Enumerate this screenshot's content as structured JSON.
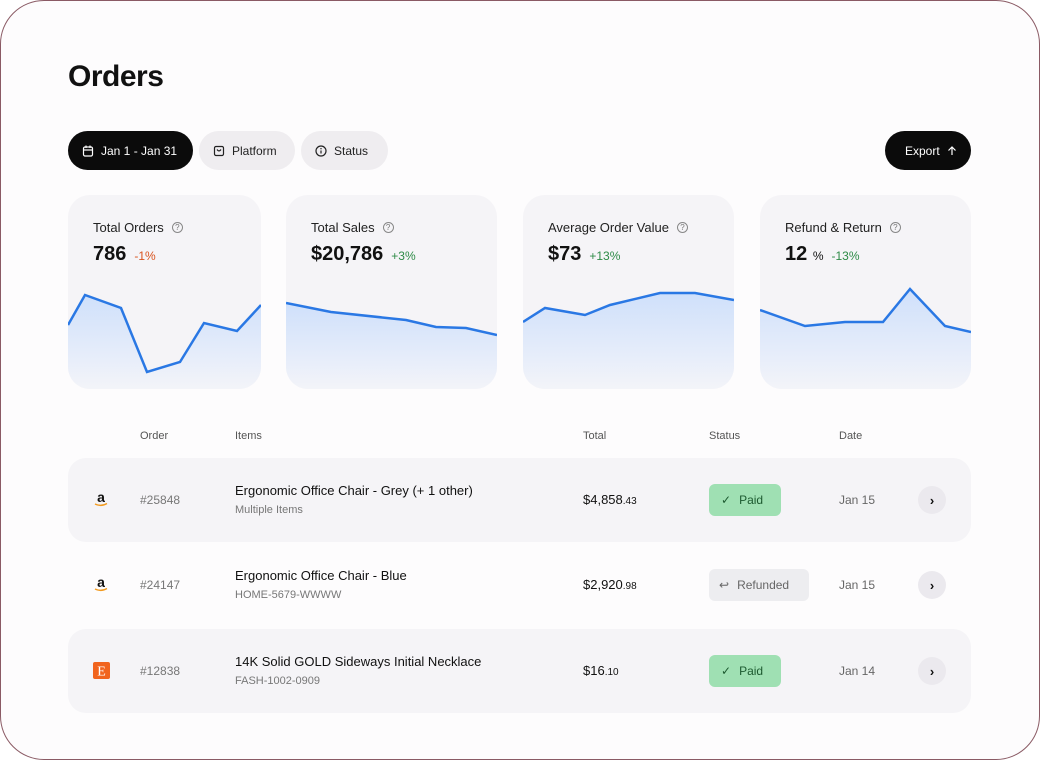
{
  "page": {
    "title": "Orders"
  },
  "filters": {
    "date": "Jan 1 - Jan 31",
    "platform": "Platform",
    "status": "Status",
    "export": "Export"
  },
  "metrics": [
    {
      "label": "Total Orders",
      "value": "786",
      "unit": "",
      "change": "-1%",
      "trend": "negative"
    },
    {
      "label": "Total Sales",
      "value": "$20,786",
      "unit": "",
      "change": "+3%",
      "trend": "positive"
    },
    {
      "label": "Average Order Value",
      "value": "$73",
      "unit": "",
      "change": "+13%",
      "trend": "positive"
    },
    {
      "label": "Refund & Return",
      "value": "12",
      "unit": "%",
      "change": "-13%",
      "trend": "positive"
    }
  ],
  "table": {
    "headers": [
      "Order",
      "Items",
      "Total",
      "Status",
      "Date"
    ],
    "rows": [
      {
        "platform": "amazon",
        "order": "#25848",
        "item": "Ergonomic Office Chair - Grey (+ 1 other)",
        "sub": "Multiple Items",
        "total_main": "$4,858",
        "total_cents": ".43",
        "status": "Paid",
        "date": "Jan 15"
      },
      {
        "platform": "amazon",
        "order": "#24147",
        "item": "Ergonomic Office Chair - Blue",
        "sub": "HOME-5679-WWWW",
        "total_main": "$2,920",
        "total_cents": ".98",
        "status": "Refunded",
        "date": "Jan 15"
      },
      {
        "platform": "etsy",
        "order": "#12838",
        "item": "14K Solid GOLD Sideways Initial Necklace",
        "sub": "FASH-1002-0909",
        "total_main": "$16",
        "total_cents": ".10",
        "status": "Paid",
        "date": "Jan 14"
      }
    ]
  },
  "colors": {
    "accent": "#2a78e4",
    "paid": "#9fe0b3",
    "negative": "#d9531e",
    "positive": "#2e8b47"
  }
}
